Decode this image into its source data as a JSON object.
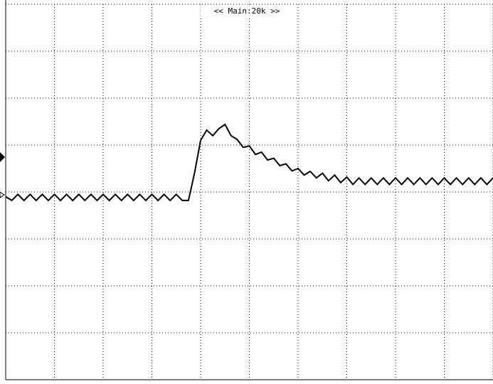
{
  "chart_data": {
    "type": "line",
    "title": "<< Main:20k >>",
    "xlim": [
      0,
      10
    ],
    "ylim": [
      0,
      8
    ],
    "xticks": [
      0,
      1,
      2,
      3,
      4,
      5,
      6,
      7,
      8,
      9,
      10
    ],
    "yticks": [
      0,
      1,
      2,
      3,
      4,
      5,
      6,
      7,
      8
    ],
    "grid": true,
    "x": [
      0,
      0.125,
      0.25,
      0.375,
      0.5,
      0.625,
      0.75,
      0.875,
      1,
      1.125,
      1.25,
      1.375,
      1.5,
      1.625,
      1.75,
      1.875,
      2,
      2.125,
      2.25,
      2.375,
      2.5,
      2.625,
      2.75,
      2.875,
      3,
      3.125,
      3.25,
      3.375,
      3.5,
      3.625,
      3.75,
      3.875,
      4,
      4.125,
      4.25,
      4.375,
      4.5,
      4.625,
      4.75,
      4.875,
      5,
      5.125,
      5.25,
      5.375,
      5.5,
      5.625,
      5.75,
      5.875,
      6,
      6.125,
      6.25,
      6.375,
      6.5,
      6.625,
      6.75,
      6.875,
      7,
      7.125,
      7.25,
      7.375,
      7.5,
      7.625,
      7.75,
      7.875,
      8,
      8.125,
      8.25,
      8.375,
      8.5,
      8.625,
      8.75,
      8.875,
      9,
      9.125,
      9.25,
      9.375,
      9.5,
      9.625,
      9.75,
      9.875,
      10
    ],
    "series": [
      {
        "color": "#000000",
        "values": [
          3.9,
          3.82,
          3.95,
          3.82,
          3.95,
          3.82,
          3.95,
          3.82,
          3.95,
          3.82,
          3.95,
          3.82,
          3.95,
          3.82,
          3.95,
          3.82,
          3.95,
          3.82,
          3.95,
          3.82,
          3.95,
          3.82,
          3.95,
          3.82,
          3.95,
          3.82,
          3.95,
          3.82,
          3.95,
          3.82,
          3.82,
          4.4,
          5.1,
          5.32,
          5.2,
          5.35,
          5.44,
          5.2,
          5.12,
          4.95,
          4.98,
          4.8,
          4.85,
          4.68,
          4.72,
          4.56,
          4.6,
          4.45,
          4.5,
          4.36,
          4.44,
          4.3,
          4.4,
          4.24,
          4.36,
          4.2,
          4.32,
          4.16,
          4.3,
          4.16,
          4.3,
          4.16,
          4.3,
          4.16,
          4.3,
          4.16,
          4.3,
          4.16,
          4.3,
          4.16,
          4.3,
          4.16,
          4.3,
          4.16,
          4.3,
          4.16,
          4.3,
          4.16,
          4.3,
          4.16,
          4.3
        ]
      }
    ]
  }
}
